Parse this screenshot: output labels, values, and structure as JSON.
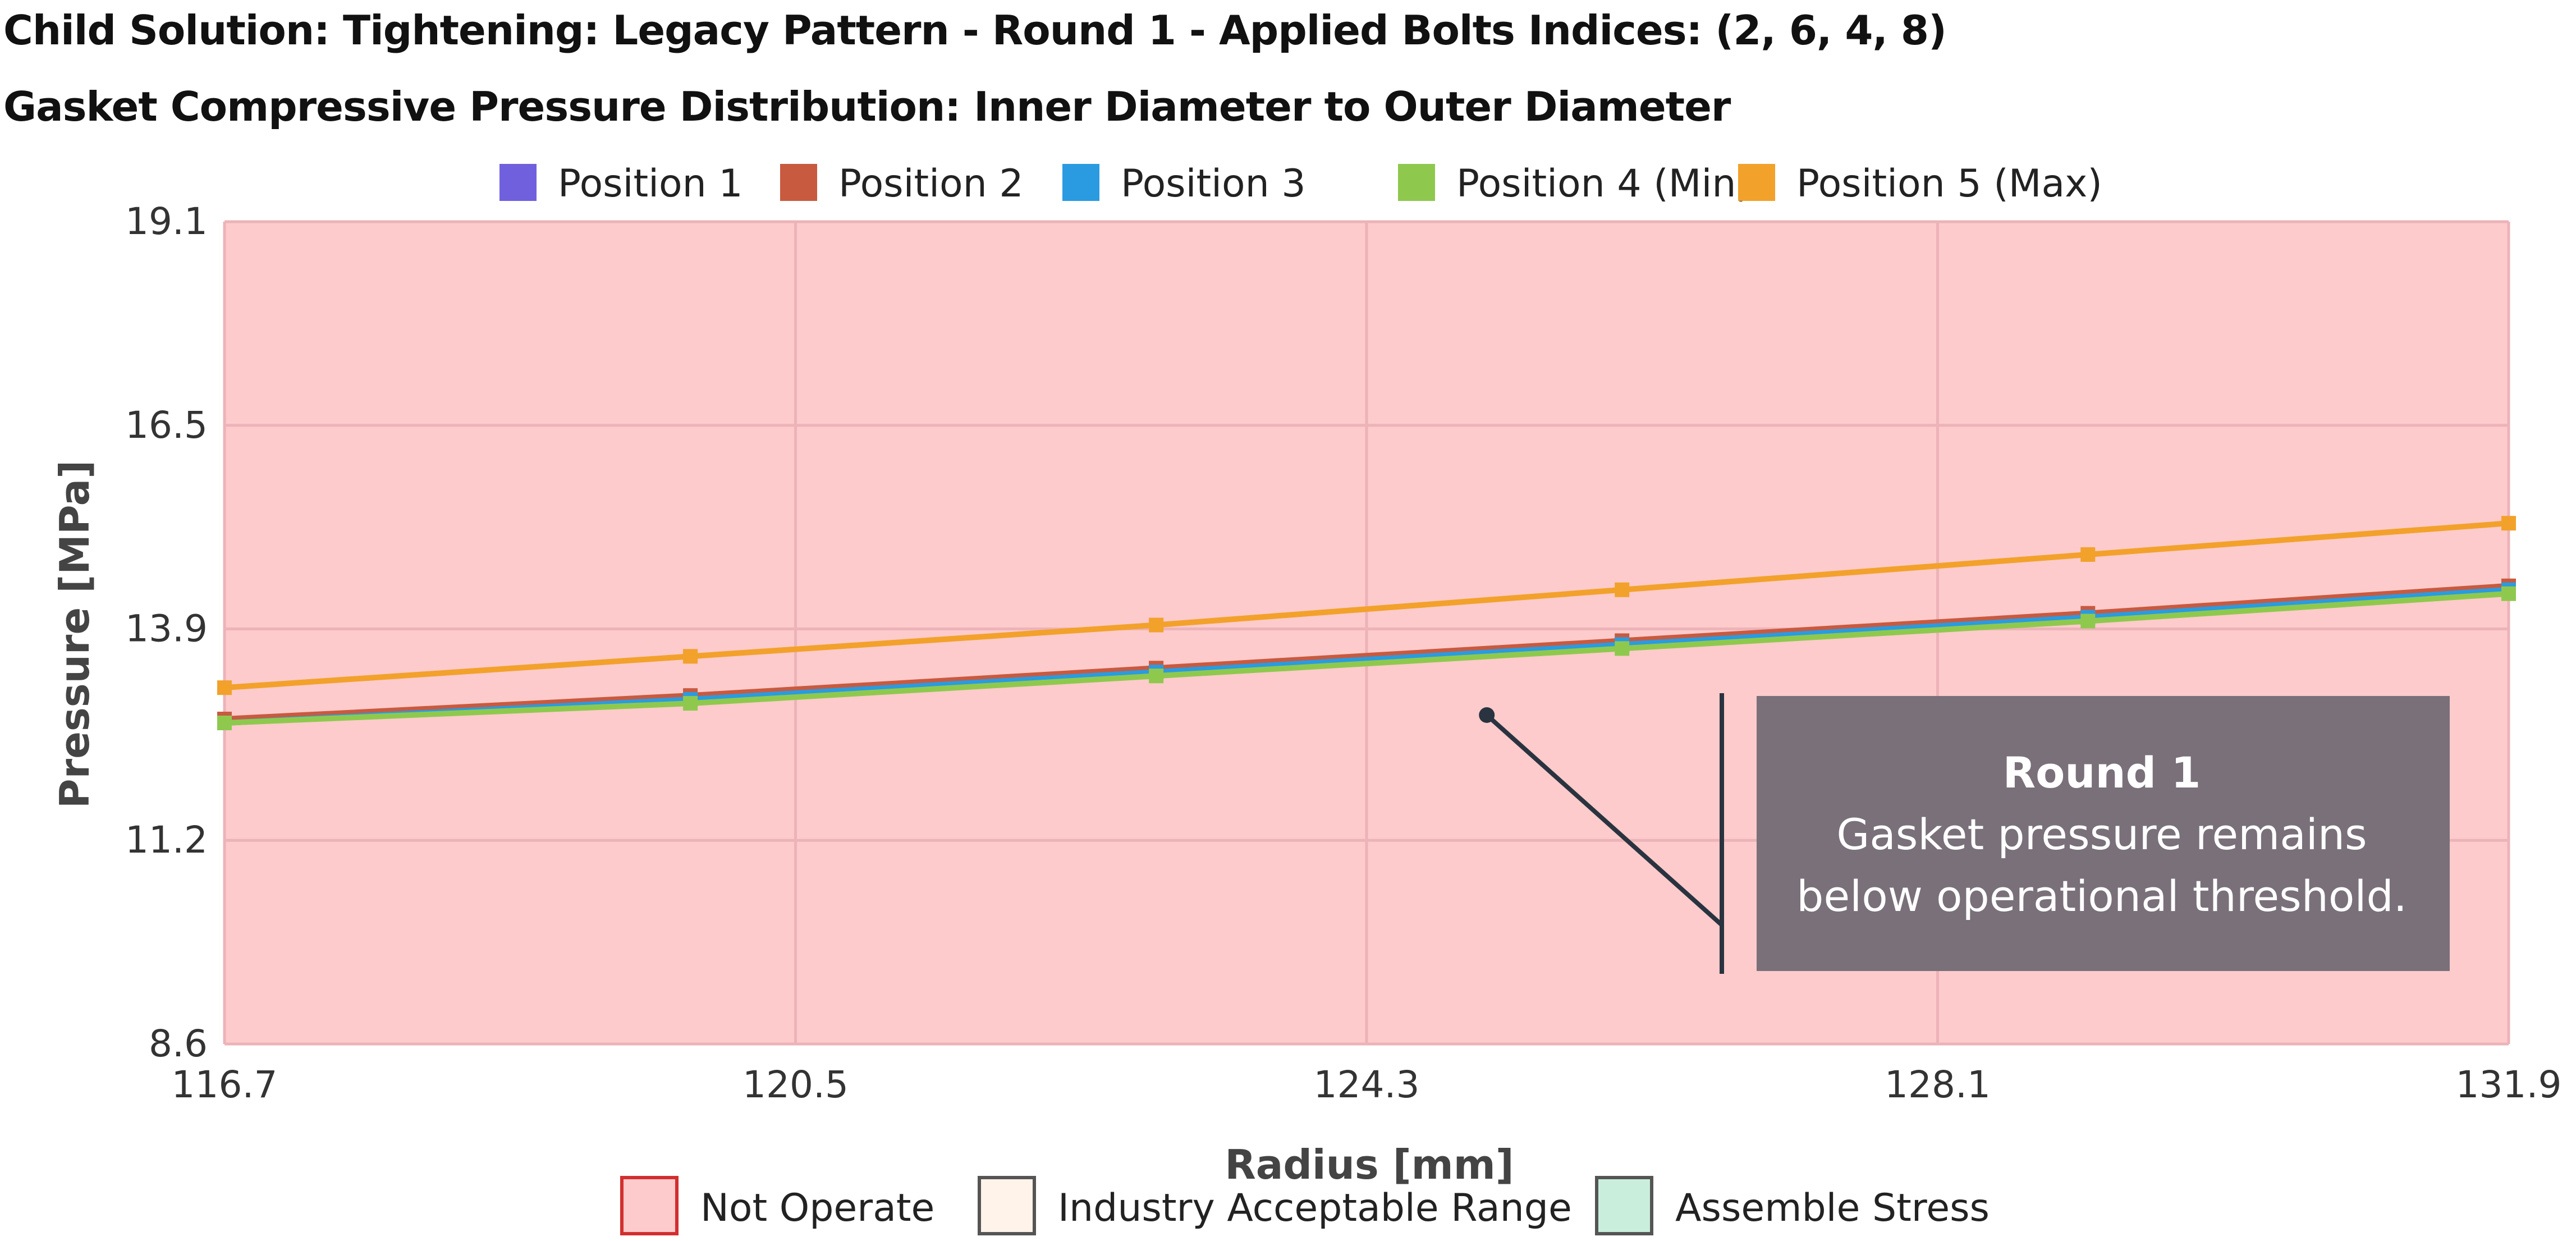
{
  "header": {
    "title": "Child Solution: Tightening: Legacy Pattern - Round 1 - Applied Bolts Indices: (2, 6, 4, 8)",
    "subtitle": "Gasket Compressive Pressure Distribution: Inner Diameter to Outer Diameter"
  },
  "chart_data": {
    "type": "line",
    "title": "Gasket Compressive Pressure Distribution: Inner Diameter to Outer Diameter",
    "xlabel": "Radius [mm]",
    "ylabel": "Pressure [MPa]",
    "xlim": [
      116.7,
      131.9
    ],
    "ylim": [
      8.6,
      19.1
    ],
    "x_ticks": [
      "116.7",
      "120.5",
      "124.3",
      "128.1",
      "131.9"
    ],
    "y_ticks": [
      "8.6",
      "11.2",
      "13.9",
      "16.5",
      "19.1"
    ],
    "grid": true,
    "legend_position": "top",
    "x": [
      116.7,
      119.8,
      122.9,
      126.0,
      129.1,
      131.9
    ],
    "series": [
      {
        "name": "Position 1",
        "color": "#7060dd",
        "values": [
          12.7,
          13.0,
          13.35,
          13.7,
          14.05,
          14.4
        ]
      },
      {
        "name": "Position 2",
        "color": "#c85a40",
        "values": [
          12.75,
          13.05,
          13.4,
          13.75,
          14.1,
          14.45
        ]
      },
      {
        "name": "Position 3",
        "color": "#2a9be0",
        "values": [
          12.7,
          13.0,
          13.35,
          13.7,
          14.05,
          14.4
        ]
      },
      {
        "name": "Position 4 (Min)",
        "color": "#8ec94e",
        "values": [
          12.7,
          12.95,
          13.3,
          13.65,
          14.0,
          14.35
        ]
      },
      {
        "name": "Position 5 (Max)",
        "color": "#f2a12b",
        "values": [
          13.15,
          13.55,
          13.95,
          14.4,
          14.85,
          15.25
        ]
      }
    ],
    "bands": [
      {
        "name": "Not Operate",
        "color": "#fdcbcb",
        "border": "#d32f2f",
        "range": [
          8.6,
          19.1
        ]
      },
      {
        "name": "Industry Acceptable Range",
        "color": "#fff3ea",
        "border": "#555555"
      },
      {
        "name": "Assemble Stress",
        "color": "#c9efdc",
        "border": "#555555"
      }
    ],
    "annotation": {
      "title": "Round 1",
      "line1": "Gasket pressure remains",
      "line2": "below operational threshold.",
      "point_x": 125.1,
      "point_y": 12.8,
      "box_color": "#79707a"
    }
  }
}
